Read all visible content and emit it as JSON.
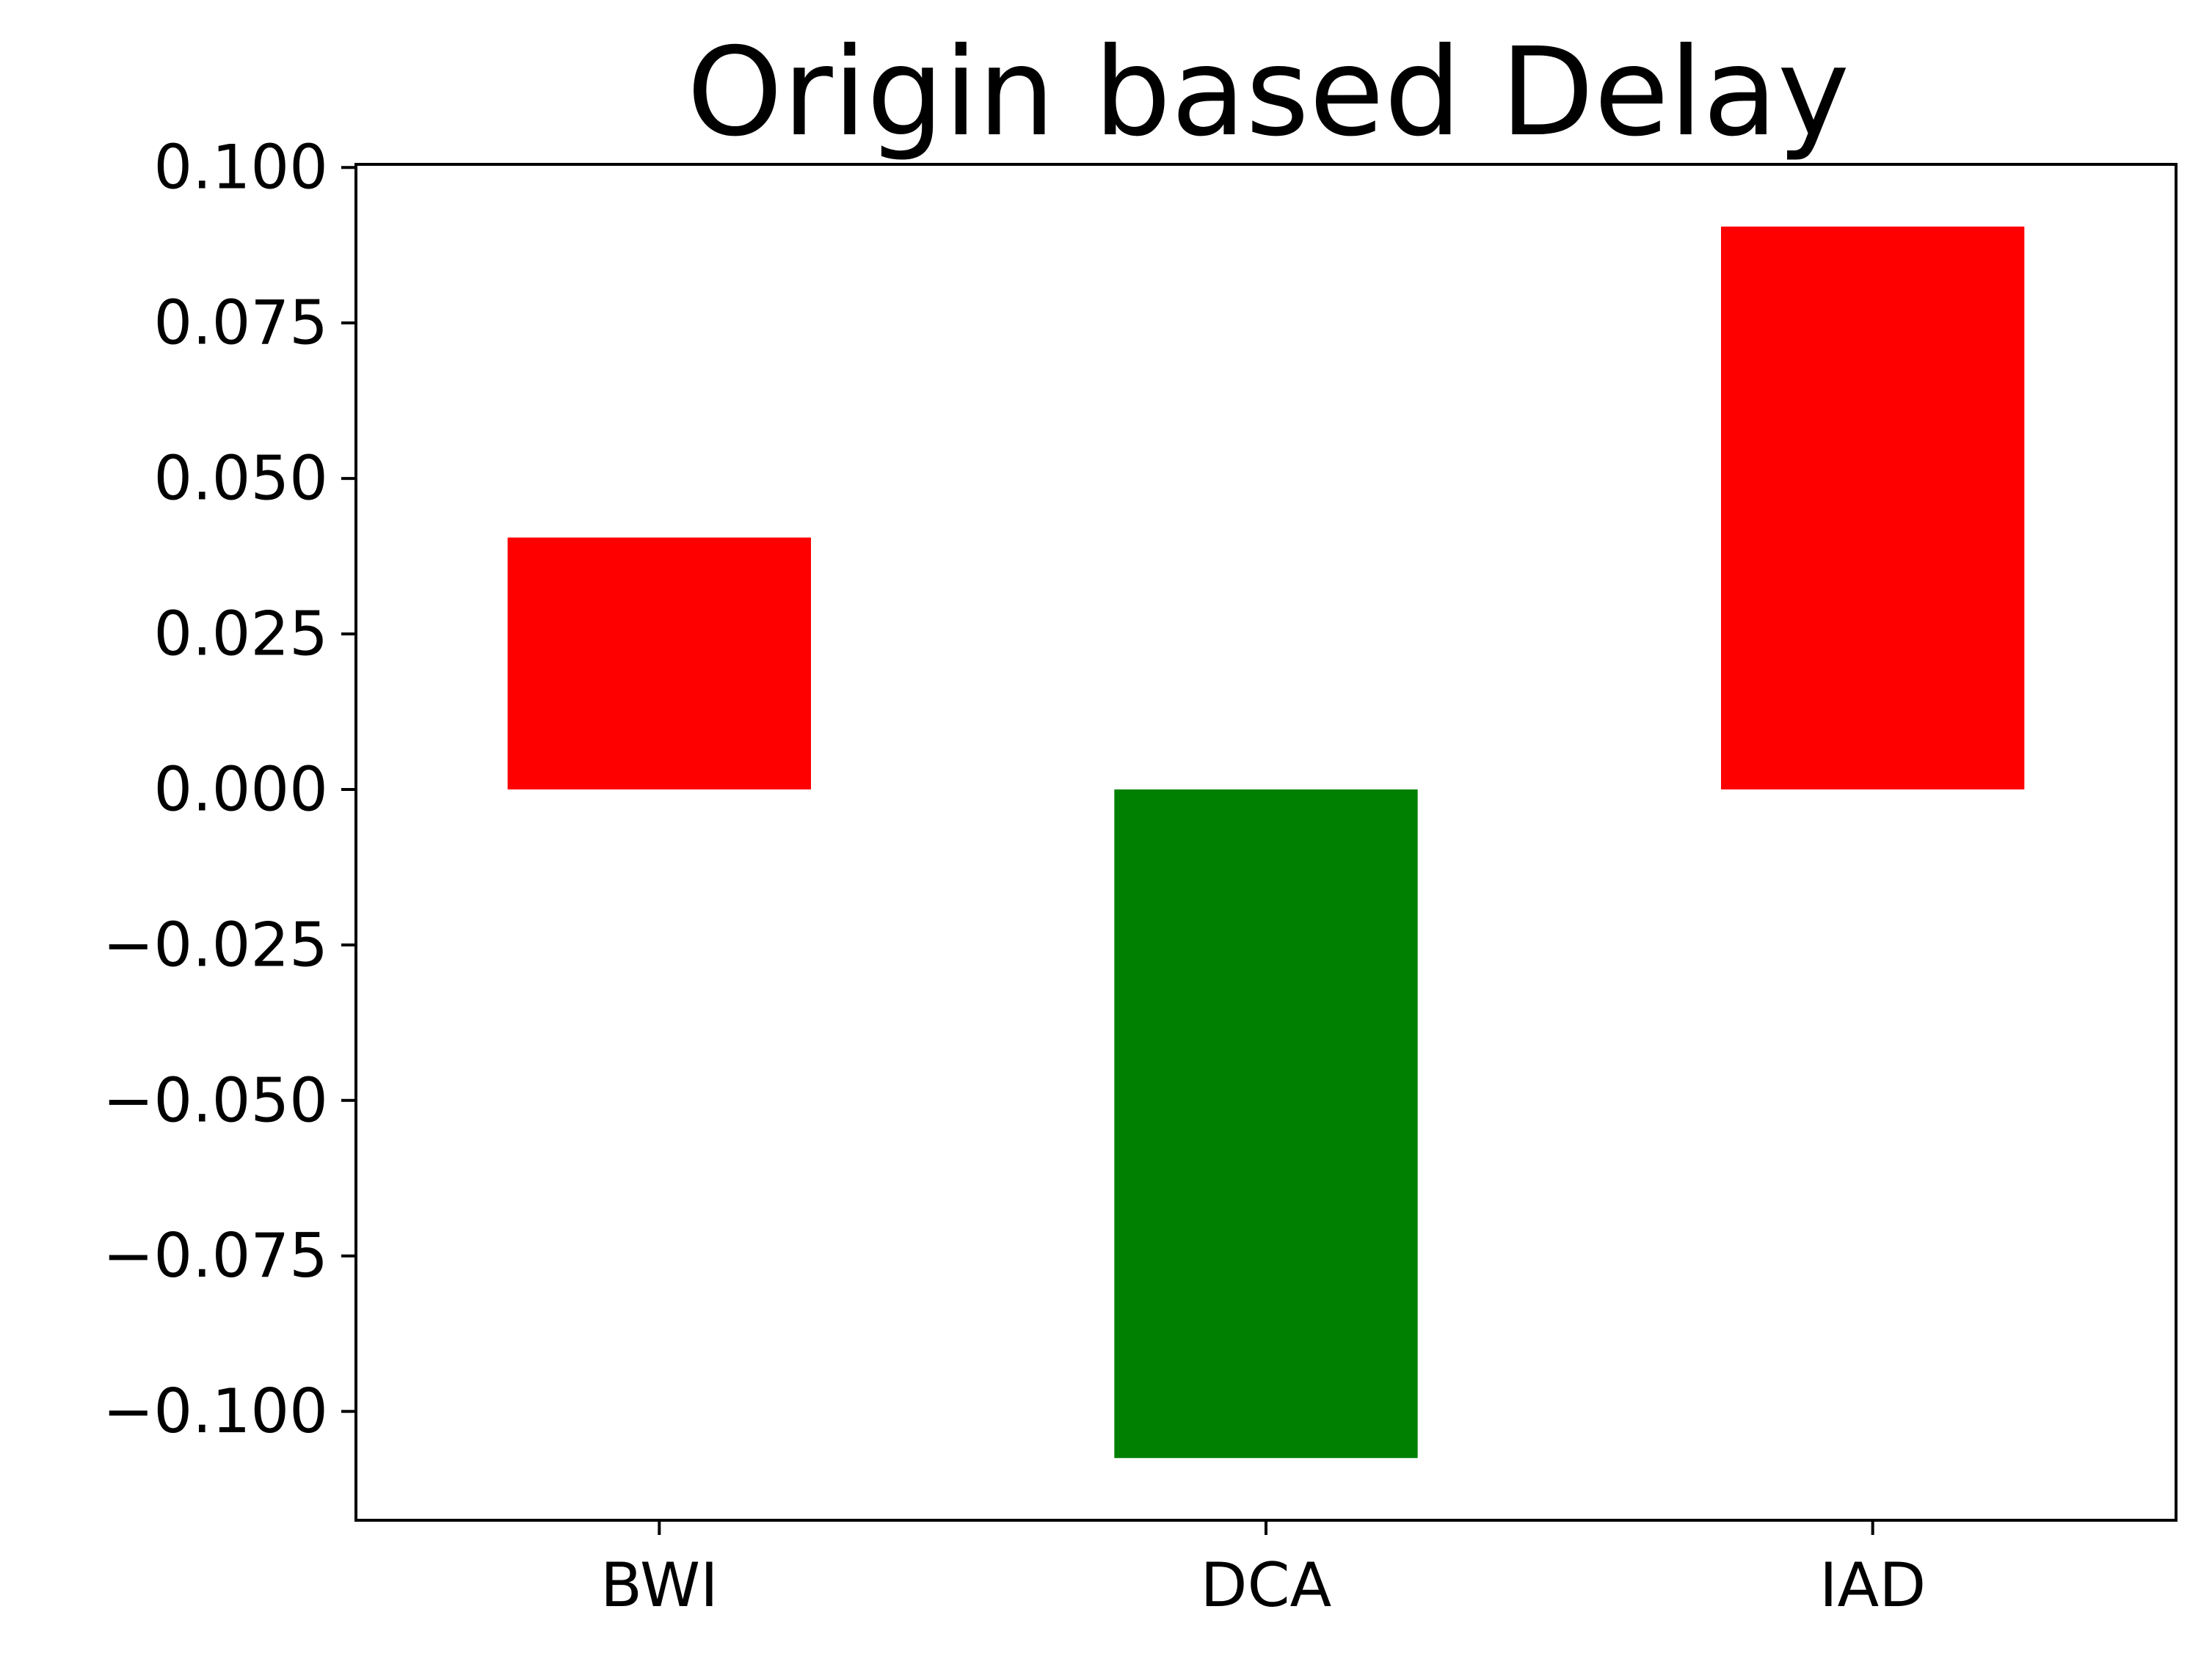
{
  "chart_data": {
    "type": "bar",
    "title": "Origin based Delay",
    "xlabel": "",
    "ylabel": "",
    "categories": [
      "BWI",
      "DCA",
      "IAD"
    ],
    "values": [
      0.0405,
      -0.1075,
      0.0905
    ],
    "bar_colors": [
      "#ff0000",
      "#008000",
      "#ff0000"
    ],
    "ylim": [
      -0.1175,
      0.1005
    ],
    "yticks": [
      {
        "value": 0.1,
        "label": "0.100"
      },
      {
        "value": 0.075,
        "label": "0.075"
      },
      {
        "value": 0.05,
        "label": "0.050"
      },
      {
        "value": 0.025,
        "label": "0.025"
      },
      {
        "value": 0.0,
        "label": "0.000"
      },
      {
        "value": -0.025,
        "label": "−0.025"
      },
      {
        "value": -0.05,
        "label": "−0.050"
      },
      {
        "value": -0.075,
        "label": "−0.075"
      },
      {
        "value": -0.1,
        "label": "−0.100"
      }
    ],
    "grid": false,
    "legend": "none"
  }
}
